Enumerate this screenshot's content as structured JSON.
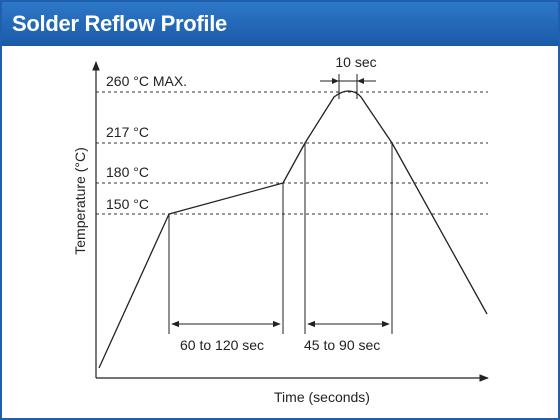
{
  "title": "Solder Reflow Profile",
  "y_axis_label": "Temperature (°C)",
  "x_axis_label": "Time (seconds)",
  "temperature_levels": {
    "max": "260 °C MAX.",
    "t217": "217 °C",
    "t180": "180 °C",
    "t150": "150 °C"
  },
  "durations": {
    "peak": "10 sec",
    "preheat": "60 to 120 sec",
    "above_liquidus": "45 to 90 sec"
  },
  "colors": {
    "title_bar": "#1f5fae",
    "title_text": "#ffffff",
    "lines": "#222222"
  }
}
